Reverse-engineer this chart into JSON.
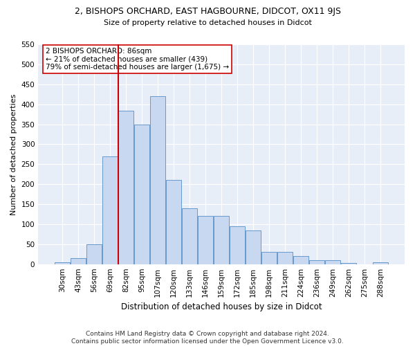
{
  "title1": "2, BISHOPS ORCHARD, EAST HAGBOURNE, DIDCOT, OX11 9JS",
  "title2": "Size of property relative to detached houses in Didcot",
  "xlabel": "Distribution of detached houses by size in Didcot",
  "ylabel": "Number of detached properties",
  "categories": [
    "30sqm",
    "43sqm",
    "56sqm",
    "69sqm",
    "82sqm",
    "95sqm",
    "107sqm",
    "120sqm",
    "133sqm",
    "146sqm",
    "159sqm",
    "172sqm",
    "185sqm",
    "198sqm",
    "211sqm",
    "224sqm",
    "236sqm",
    "249sqm",
    "262sqm",
    "275sqm",
    "288sqm"
  ],
  "bar_values": [
    5,
    15,
    50,
    270,
    383,
    350,
    420,
    210,
    140,
    120,
    120,
    95,
    85,
    30,
    30,
    20,
    10,
    10,
    3,
    0,
    5
  ],
  "bar_color": "#c8d8f0",
  "bar_edge_color": "#6699cc",
  "vline_x_index": 4,
  "vline_color": "#cc0000",
  "annotation_text": "2 BISHOPS ORCHARD: 86sqm\n← 21% of detached houses are smaller (439)\n79% of semi-detached houses are larger (1,675) →",
  "annotation_box_color": "#ffffff",
  "annotation_box_edge": "#cc0000",
  "ylim": [
    0,
    550
  ],
  "yticks": [
    0,
    50,
    100,
    150,
    200,
    250,
    300,
    350,
    400,
    450,
    500,
    550
  ],
  "footer": "Contains HM Land Registry data © Crown copyright and database right 2024.\nContains public sector information licensed under the Open Government Licence v3.0.",
  "bg_color": "#ffffff",
  "plot_bg_color": "#e8eef8",
  "grid_color": "#ffffff",
  "title1_fontsize": 9,
  "title2_fontsize": 8,
  "xlabel_fontsize": 8.5,
  "ylabel_fontsize": 8,
  "tick_fontsize": 7.5,
  "footer_fontsize": 6.5
}
